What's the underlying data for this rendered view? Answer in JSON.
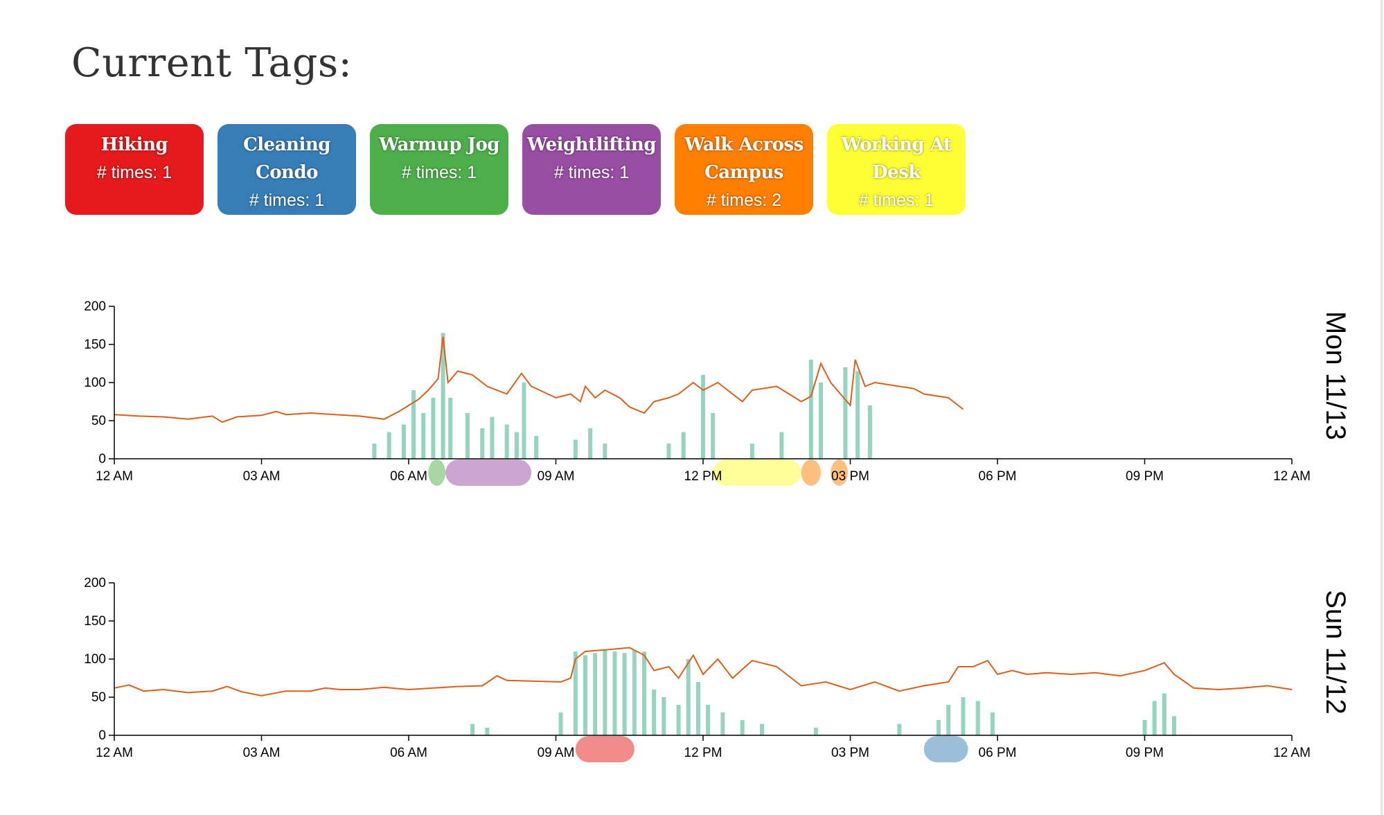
{
  "page": {
    "title": "Current Tags:"
  },
  "tags": [
    {
      "name": "Hiking",
      "count_label": "# times: 1",
      "color": "#e41a1c"
    },
    {
      "name": "Cleaning Condo",
      "count_label": "# times: 1",
      "color": "#377eb8"
    },
    {
      "name": "Warmup Jog",
      "count_label": "# times: 1",
      "color": "#4daf4a"
    },
    {
      "name": "Weightlifting",
      "count_label": "# times: 1",
      "color": "#984ea3"
    },
    {
      "name": "Walk Across Campus",
      "count_label": "# times: 2",
      "color": "#ff7f00"
    },
    {
      "name": "Working At Desk",
      "count_label": "# times: 1",
      "color": "#ffff33"
    }
  ],
  "chart_data": [
    {
      "type": "line",
      "day_label": "Mon 11/13",
      "x_ticks": [
        "12 AM",
        "03 AM",
        "06 AM",
        "09 AM",
        "12 PM",
        "03 PM",
        "06 PM",
        "09 PM",
        "12 AM"
      ],
      "y_ticks": [
        0,
        50,
        100,
        150,
        200
      ],
      "ylim": [
        0,
        200
      ],
      "xlim_hours": [
        0,
        24
      ],
      "line_color": "#d95f1a",
      "activity_color": "#66c2a5",
      "heart_rate": [
        [
          0,
          58
        ],
        [
          0.5,
          56
        ],
        [
          1,
          55
        ],
        [
          1.5,
          52
        ],
        [
          2,
          56
        ],
        [
          2.2,
          48
        ],
        [
          2.5,
          55
        ],
        [
          3,
          57
        ],
        [
          3.3,
          62
        ],
        [
          3.5,
          58
        ],
        [
          4,
          60
        ],
        [
          4.5,
          58
        ],
        [
          5,
          56
        ],
        [
          5.5,
          52
        ],
        [
          5.8,
          62
        ],
        [
          6,
          70
        ],
        [
          6.2,
          78
        ],
        [
          6.4,
          90
        ],
        [
          6.6,
          105
        ],
        [
          6.7,
          160
        ],
        [
          6.8,
          100
        ],
        [
          7,
          115
        ],
        [
          7.3,
          110
        ],
        [
          7.6,
          95
        ],
        [
          8,
          85
        ],
        [
          8.3,
          112
        ],
        [
          8.5,
          95
        ],
        [
          9,
          80
        ],
        [
          9.3,
          85
        ],
        [
          9.5,
          75
        ],
        [
          9.6,
          95
        ],
        [
          9.8,
          80
        ],
        [
          10,
          90
        ],
        [
          10.3,
          80
        ],
        [
          10.5,
          68
        ],
        [
          10.8,
          60
        ],
        [
          11,
          75
        ],
        [
          11.3,
          80
        ],
        [
          11.5,
          85
        ],
        [
          11.8,
          100
        ],
        [
          12,
          90
        ],
        [
          12.3,
          100
        ],
        [
          12.6,
          85
        ],
        [
          12.8,
          75
        ],
        [
          13,
          90
        ],
        [
          13.5,
          95
        ],
        [
          14,
          75
        ],
        [
          14.2,
          82
        ],
        [
          14.4,
          125
        ],
        [
          14.6,
          100
        ],
        [
          15,
          70
        ],
        [
          15.1,
          130
        ],
        [
          15.3,
          95
        ],
        [
          15.5,
          100
        ],
        [
          16,
          95
        ],
        [
          16.3,
          92
        ],
        [
          16.5,
          85
        ],
        [
          17,
          80
        ],
        [
          17.2,
          70
        ],
        [
          17.3,
          65
        ]
      ],
      "activity_bars": [
        [
          5.3,
          20
        ],
        [
          5.6,
          35
        ],
        [
          5.9,
          45
        ],
        [
          6.1,
          90
        ],
        [
          6.3,
          60
        ],
        [
          6.5,
          80
        ],
        [
          6.7,
          165
        ],
        [
          6.85,
          80
        ],
        [
          7.2,
          60
        ],
        [
          7.5,
          40
        ],
        [
          7.7,
          55
        ],
        [
          8,
          45
        ],
        [
          8.2,
          35
        ],
        [
          8.35,
          100
        ],
        [
          8.6,
          30
        ],
        [
          9.4,
          25
        ],
        [
          9.7,
          40
        ],
        [
          10,
          20
        ],
        [
          11.3,
          20
        ],
        [
          11.6,
          35
        ],
        [
          12,
          110
        ],
        [
          12.2,
          60
        ],
        [
          13,
          20
        ],
        [
          13.6,
          35
        ],
        [
          14.2,
          130
        ],
        [
          14.4,
          100
        ],
        [
          14.9,
          120
        ],
        [
          15.15,
          115
        ],
        [
          15.4,
          70
        ]
      ],
      "tag_spans": [
        {
          "tag": "Warmup Jog",
          "start": 6.4,
          "end": 6.75,
          "color": "#4daf4a"
        },
        {
          "tag": "Weightlifting",
          "start": 6.75,
          "end": 8.5,
          "color": "#984ea3"
        },
        {
          "tag": "Working At Desk",
          "start": 12.2,
          "end": 14.0,
          "color": "#ffff33"
        },
        {
          "tag": "Walk Across Campus",
          "start": 14.0,
          "end": 14.4,
          "color": "#ff7f00"
        },
        {
          "tag": "Walk Across Campus",
          "start": 14.6,
          "end": 14.95,
          "color": "#ff7f00"
        }
      ]
    },
    {
      "type": "line",
      "day_label": "Sun 11/12",
      "x_ticks": [
        "12 AM",
        "03 AM",
        "06 AM",
        "09 AM",
        "12 PM",
        "03 PM",
        "06 PM",
        "09 PM",
        "12 AM"
      ],
      "y_ticks": [
        0,
        50,
        100,
        150,
        200
      ],
      "ylim": [
        0,
        200
      ],
      "xlim_hours": [
        0,
        24
      ],
      "line_color": "#d95f1a",
      "activity_color": "#66c2a5",
      "heart_rate": [
        [
          0,
          62
        ],
        [
          0.3,
          66
        ],
        [
          0.6,
          58
        ],
        [
          1,
          60
        ],
        [
          1.5,
          56
        ],
        [
          2,
          58
        ],
        [
          2.3,
          64
        ],
        [
          2.6,
          57
        ],
        [
          3,
          52
        ],
        [
          3.5,
          58
        ],
        [
          4,
          58
        ],
        [
          4.3,
          62
        ],
        [
          4.6,
          60
        ],
        [
          5,
          60
        ],
        [
          5.5,
          63
        ],
        [
          6,
          60
        ],
        [
          6.5,
          62
        ],
        [
          7,
          64
        ],
        [
          7.5,
          65
        ],
        [
          7.8,
          78
        ],
        [
          8,
          72
        ],
        [
          9.1,
          70
        ],
        [
          9.3,
          75
        ],
        [
          9.4,
          100
        ],
        [
          9.6,
          110
        ],
        [
          10,
          112
        ],
        [
          10.5,
          115
        ],
        [
          10.8,
          105
        ],
        [
          11,
          85
        ],
        [
          11.3,
          90
        ],
        [
          11.5,
          75
        ],
        [
          11.8,
          105
        ],
        [
          12,
          80
        ],
        [
          12.3,
          100
        ],
        [
          12.6,
          75
        ],
        [
          13,
          98
        ],
        [
          13.5,
          90
        ],
        [
          13.8,
          75
        ],
        [
          14,
          65
        ],
        [
          14.5,
          70
        ],
        [
          15,
          60
        ],
        [
          15.5,
          70
        ],
        [
          16,
          58
        ],
        [
          16.5,
          65
        ],
        [
          17,
          70
        ],
        [
          17.2,
          90
        ],
        [
          17.5,
          90
        ],
        [
          17.8,
          98
        ],
        [
          18,
          80
        ],
        [
          18.3,
          85
        ],
        [
          18.6,
          80
        ],
        [
          19,
          82
        ],
        [
          19.5,
          80
        ],
        [
          20,
          82
        ],
        [
          20.5,
          78
        ],
        [
          21,
          85
        ],
        [
          21.4,
          95
        ],
        [
          21.6,
          80
        ],
        [
          22,
          62
        ],
        [
          22.5,
          60
        ],
        [
          23,
          62
        ],
        [
          23.5,
          65
        ],
        [
          24,
          60
        ]
      ],
      "activity_bars": [
        [
          7.3,
          15
        ],
        [
          7.6,
          10
        ],
        [
          9.1,
          30
        ],
        [
          9.4,
          110
        ],
        [
          9.6,
          105
        ],
        [
          9.8,
          108
        ],
        [
          10,
          112
        ],
        [
          10.2,
          110
        ],
        [
          10.4,
          108
        ],
        [
          10.6,
          112
        ],
        [
          10.8,
          110
        ],
        [
          11,
          60
        ],
        [
          11.2,
          50
        ],
        [
          11.5,
          40
        ],
        [
          11.7,
          100
        ],
        [
          11.9,
          70
        ],
        [
          12.1,
          40
        ],
        [
          12.4,
          30
        ],
        [
          12.8,
          20
        ],
        [
          13.2,
          15
        ],
        [
          14.3,
          10
        ],
        [
          16,
          15
        ],
        [
          16.8,
          20
        ],
        [
          17.0,
          40
        ],
        [
          17.3,
          50
        ],
        [
          17.6,
          45
        ],
        [
          17.9,
          30
        ],
        [
          21,
          20
        ],
        [
          21.2,
          45
        ],
        [
          21.4,
          55
        ],
        [
          21.6,
          25
        ]
      ],
      "tag_spans": [
        {
          "tag": "Hiking",
          "start": 9.4,
          "end": 10.6,
          "color": "#e41a1c"
        },
        {
          "tag": "Cleaning Condo",
          "start": 16.5,
          "end": 17.4,
          "color": "#377eb8"
        }
      ]
    }
  ]
}
